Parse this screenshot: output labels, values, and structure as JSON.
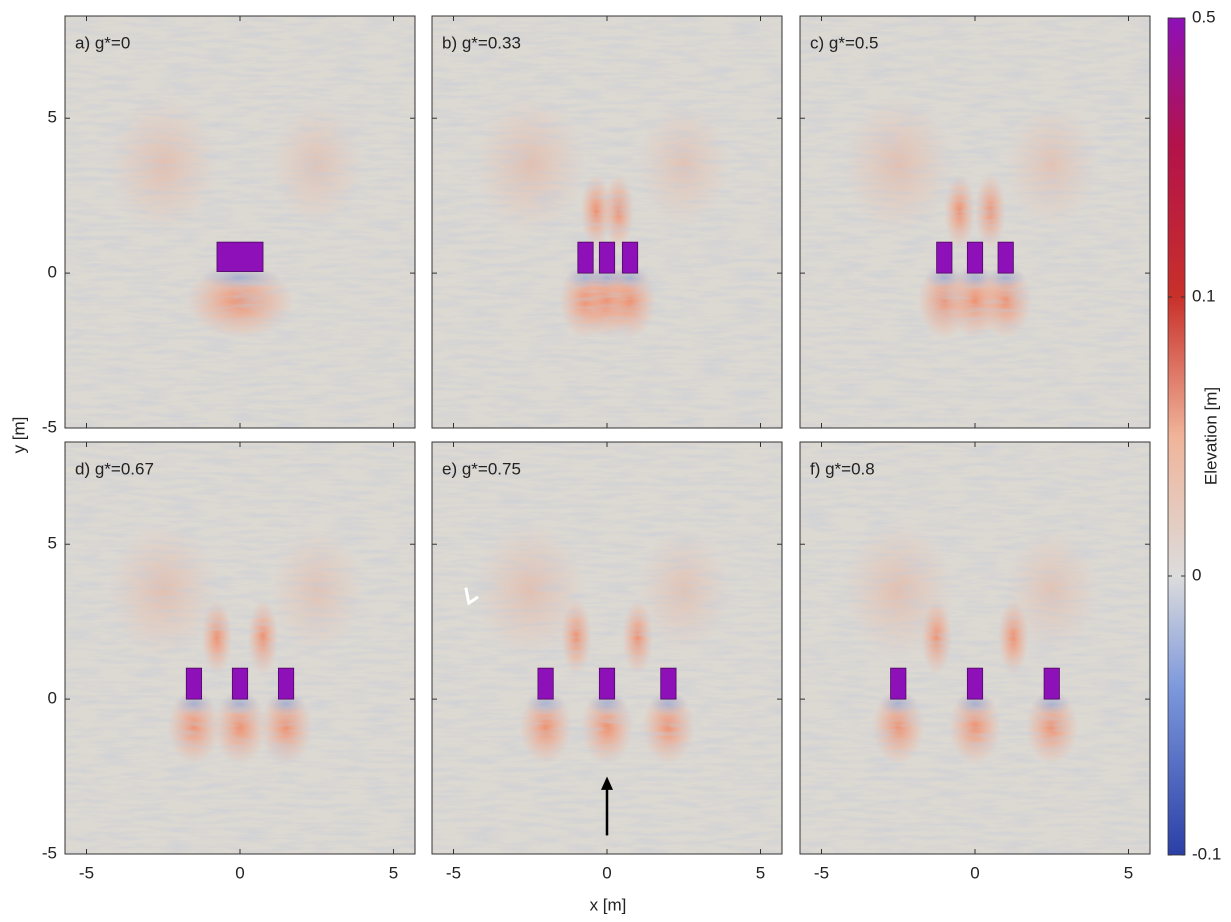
{
  "xlabel": "x [m]",
  "ylabel": "y [m]",
  "colorbar": {
    "label": "Elevation [m]",
    "clim": [
      -0.1,
      0.5
    ],
    "ticks": [
      -0.1,
      0,
      0.1,
      0.5
    ]
  },
  "chart_data": [
    {
      "type": "heatmap",
      "title": "a)  g*=0",
      "xlim": [
        -5.7,
        5.7
      ],
      "ylim": [
        -5,
        8.3
      ],
      "xticks": [
        -5,
        0,
        5
      ],
      "yticks": [
        -5,
        0,
        5
      ],
      "color": "#8e10b8",
      "obstacles": [
        {
          "x": 0,
          "width": 1.5
        }
      ],
      "obstacle_ylim": [
        0.05,
        1
      ]
    },
    {
      "type": "heatmap",
      "title": "b)  g*=0.33",
      "xlim": [
        -5.7,
        5.7
      ],
      "ylim": [
        -5,
        8.3
      ],
      "xticks": [
        -5,
        0,
        5
      ],
      "yticks": [
        -5,
        0,
        5
      ],
      "color": "#8e10b8",
      "obstacles": [
        {
          "x": -0.7,
          "width": 0.5
        },
        {
          "x": 0,
          "width": 0.5
        },
        {
          "x": 0.75,
          "width": 0.5
        }
      ],
      "obstacle_ylim": [
        0,
        1
      ]
    },
    {
      "type": "heatmap",
      "title": "c)  g*=0.5",
      "xlim": [
        -5.7,
        5.7
      ],
      "ylim": [
        -5,
        8.3
      ],
      "xticks": [
        -5,
        0,
        5
      ],
      "yticks": [
        -5,
        0,
        5
      ],
      "color": "#8e10b8",
      "obstacles": [
        {
          "x": -1,
          "width": 0.5
        },
        {
          "x": 0,
          "width": 0.5
        },
        {
          "x": 1,
          "width": 0.5
        }
      ],
      "obstacle_ylim": [
        0,
        1
      ]
    },
    {
      "type": "heatmap",
      "title": "d)  g*=0.67",
      "xlim": [
        -5.7,
        5.7
      ],
      "ylim": [
        -5,
        8.3
      ],
      "xticks": [
        -5,
        0,
        5
      ],
      "yticks": [
        -5,
        0,
        5
      ],
      "color": "#8e10b8",
      "obstacles": [
        {
          "x": -1.5,
          "width": 0.5
        },
        {
          "x": 0,
          "width": 0.5
        },
        {
          "x": 1.5,
          "width": 0.5
        }
      ],
      "obstacle_ylim": [
        0,
        1
      ]
    },
    {
      "type": "heatmap",
      "title": "e)  g*=0.75",
      "xlim": [
        -5.7,
        5.7
      ],
      "ylim": [
        -5,
        8.3
      ],
      "xticks": [
        -5,
        0,
        5
      ],
      "yticks": [
        -5,
        0,
        5
      ],
      "color": "#8e10b8",
      "obstacles": [
        {
          "x": -2,
          "width": 0.5
        },
        {
          "x": 0,
          "width": 0.5
        },
        {
          "x": 2,
          "width": 0.5
        }
      ],
      "obstacle_ylim": [
        0,
        1
      ]
    },
    {
      "type": "heatmap",
      "title": "f)  g*=0.8",
      "xlim": [
        -5.7,
        5.7
      ],
      "ylim": [
        -5,
        8.3
      ],
      "xticks": [
        -5,
        0,
        5
      ],
      "yticks": [
        -5,
        0,
        5
      ],
      "color": "#8e10b8",
      "obstacles": [
        {
          "x": -2.5,
          "width": 0.5
        },
        {
          "x": 0,
          "width": 0.5
        },
        {
          "x": 2.5,
          "width": 0.5
        }
      ],
      "obstacle_ylim": [
        0,
        1
      ]
    }
  ]
}
